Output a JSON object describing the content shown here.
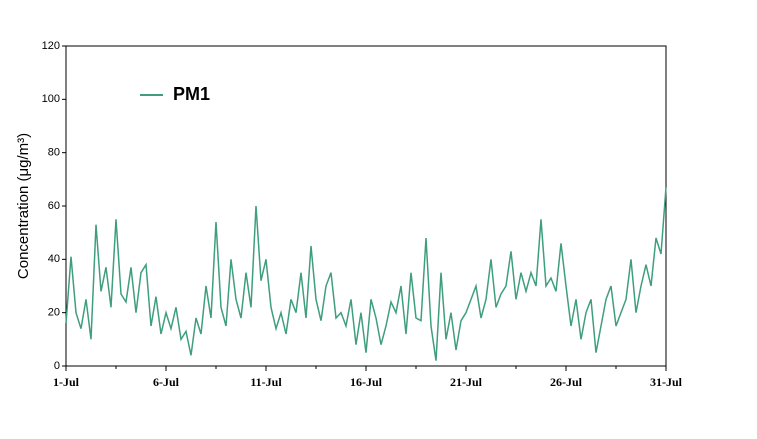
{
  "chart_data": {
    "type": "line",
    "y_label": "Concentration (μg/m³)",
    "legend_position": "upper left",
    "xlim": [
      1,
      31
    ],
    "ylim": [
      0,
      120
    ],
    "yticks": [
      0,
      20,
      40,
      60,
      80,
      100,
      120
    ],
    "xticks": [
      {
        "value": 1,
        "label": "1-Jul"
      },
      {
        "value": 6,
        "label": "6-Jul"
      },
      {
        "value": 11,
        "label": "11-Jul"
      },
      {
        "value": 16,
        "label": "16-Jul"
      },
      {
        "value": 21,
        "label": "21-Jul"
      },
      {
        "value": 26,
        "label": "26-Jul"
      },
      {
        "value": 31,
        "label": "31-Jul"
      }
    ],
    "xminor_ticks": [
      3.5,
      8.5,
      13.5,
      18.5,
      23.5,
      28.5
    ],
    "x": [
      1,
      1.25,
      1.5,
      1.75,
      2,
      2.25,
      2.5,
      2.75,
      3,
      3.25,
      3.5,
      3.75,
      4,
      4.25,
      4.5,
      4.75,
      5,
      5.25,
      5.5,
      5.75,
      6,
      6.25,
      6.5,
      6.75,
      7,
      7.25,
      7.5,
      7.75,
      8,
      8.25,
      8.5,
      8.75,
      9,
      9.25,
      9.5,
      9.75,
      10,
      10.25,
      10.5,
      10.75,
      11,
      11.25,
      11.5,
      11.75,
      12,
      12.25,
      12.5,
      12.75,
      13,
      13.25,
      13.5,
      13.75,
      14,
      14.25,
      14.5,
      14.75,
      15,
      15.25,
      15.5,
      15.75,
      16,
      16.25,
      16.5,
      16.75,
      17,
      17.25,
      17.5,
      17.75,
      18,
      18.25,
      18.5,
      18.75,
      19,
      19.25,
      19.5,
      19.75,
      20,
      20.25,
      20.5,
      20.75,
      21,
      21.25,
      21.5,
      21.75,
      22,
      22.25,
      22.5,
      22.75,
      23,
      23.25,
      23.5,
      23.75,
      24,
      24.25,
      24.5,
      24.75,
      25,
      25.25,
      25.5,
      25.75,
      26,
      26.25,
      26.5,
      26.75,
      27,
      27.25,
      27.5,
      27.75,
      28,
      28.25,
      28.5,
      28.75,
      29,
      29.25,
      29.5,
      29.75,
      30,
      30.25,
      30.5,
      30.75,
      31
    ],
    "series": [
      {
        "name": "PM1",
        "color": "#3f9e7f",
        "values": [
          16,
          41,
          20,
          14,
          25,
          10,
          53,
          28,
          37,
          22,
          55,
          27,
          24,
          37,
          20,
          35,
          38,
          15,
          26,
          12,
          20,
          14,
          22,
          10,
          13,
          4,
          18,
          12,
          30,
          18,
          54,
          22,
          15,
          40,
          25,
          18,
          35,
          22,
          60,
          32,
          40,
          22,
          14,
          20,
          12,
          25,
          20,
          35,
          18,
          45,
          25,
          17,
          30,
          35,
          18,
          20,
          15,
          25,
          8,
          20,
          5,
          25,
          18,
          8,
          15,
          24,
          20,
          30,
          12,
          35,
          18,
          17,
          48,
          15,
          2,
          35,
          10,
          20,
          6,
          17,
          20,
          25,
          30,
          18,
          25,
          40,
          22,
          27,
          30,
          43,
          25,
          35,
          28,
          35,
          30,
          55,
          30,
          33,
          28,
          46,
          30,
          15,
          25,
          10,
          20,
          25,
          5,
          15,
          25,
          30,
          15,
          20,
          25,
          40,
          20,
          30,
          38,
          30,
          48,
          42,
          67
        ]
      }
    ]
  }
}
